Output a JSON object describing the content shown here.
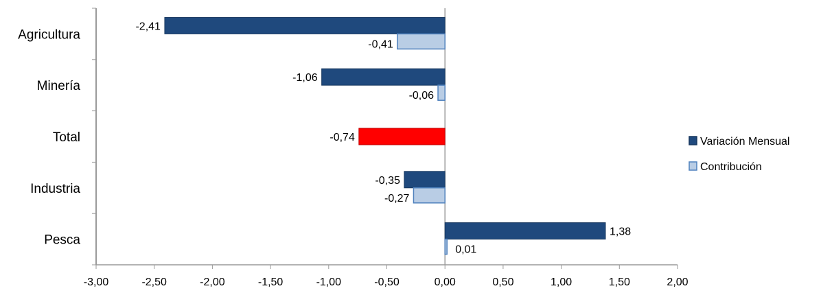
{
  "chart_data": {
    "type": "bar",
    "orientation": "horizontal",
    "categories": [
      "Agricultura",
      "Minería",
      "Total",
      "Industria",
      "Pesca"
    ],
    "series": [
      {
        "name": "Variación Mensual",
        "color": "#1F497D",
        "values": [
          -2.41,
          -1.06,
          -0.74,
          -0.35,
          1.38
        ],
        "labels": [
          "-2,41",
          "-1,06",
          "-0,74",
          "-0,35",
          "1,38"
        ]
      },
      {
        "name": "Contribución",
        "color": "#B9CDE5",
        "values": [
          -0.41,
          -0.06,
          null,
          -0.27,
          0.01
        ],
        "labels": [
          "-0,41",
          "-0,06",
          "",
          "-0,27",
          "0,01"
        ]
      }
    ],
    "highlight": {
      "category": "Total",
      "color": "#FF0000"
    },
    "xlim": [
      -3.0,
      2.0
    ],
    "xticks": [
      -3.0,
      -2.5,
      -2.0,
      -1.5,
      -1.0,
      -0.5,
      0.0,
      0.5,
      1.0,
      1.5,
      2.0
    ],
    "xtick_labels": [
      "-3,00",
      "-2,50",
      "-2,00",
      "-1,50",
      "-1,00",
      "-0,50",
      "0,00",
      "0,50",
      "1,00",
      "1,50",
      "2,00"
    ],
    "legend_position": "right",
    "grid": false
  }
}
